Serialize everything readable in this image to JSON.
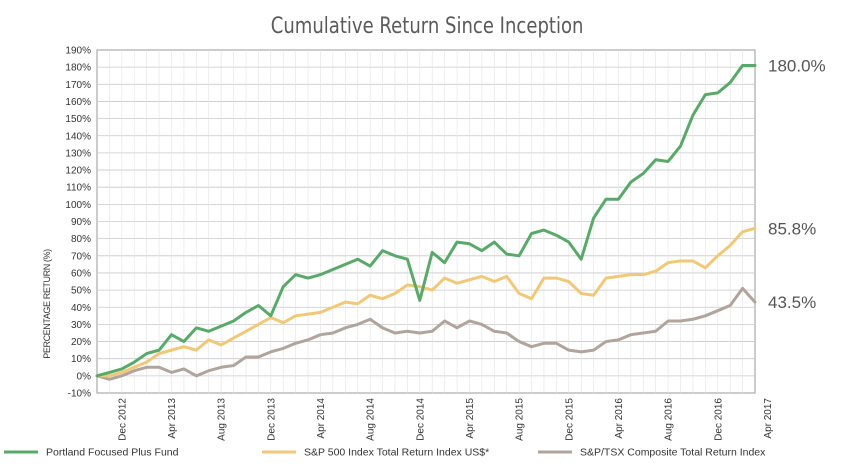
{
  "chart_data": {
    "type": "line",
    "title": "Cumulative Return Since Inception",
    "ylabel": "PERCENTAGE RETURN (%)",
    "xlabel": "",
    "ylim": [
      -10,
      190
    ],
    "y_ticks": [
      "-10%",
      "0%",
      "10%",
      "20%",
      "30%",
      "40%",
      "50%",
      "60%",
      "70%",
      "80%",
      "90%",
      "100%",
      "110%",
      "120%",
      "130%",
      "140%",
      "150%",
      "160%",
      "170%",
      "180%",
      "190%"
    ],
    "x_start": "Oct 2012",
    "x_end": "Apr 2017",
    "x_tick_labels": [
      "Dec 2012",
      "Apr 2013",
      "Aug 2013",
      "Dec 2013",
      "Apr 2014",
      "Aug 2014",
      "Dec 2014",
      "Apr 2015",
      "Aug 2015",
      "Dec 2015",
      "Apr 2016",
      "Aug 2016",
      "Dec 2016",
      "Apr 2017"
    ],
    "grid": true,
    "legend_position": "bottom",
    "series": [
      {
        "name": "Portland Focused Plus Fund",
        "color": "#5aa86a",
        "end_label": "180.0%",
        "values": [
          0,
          2,
          4,
          8,
          13,
          15,
          24,
          20,
          28,
          26,
          29,
          32,
          37,
          41,
          35,
          52,
          59,
          57,
          59,
          62,
          65,
          68,
          64,
          73,
          70,
          68,
          44,
          72,
          66,
          78,
          77,
          73,
          78,
          71,
          70,
          83,
          85,
          82,
          78,
          68,
          92,
          103,
          103,
          113,
          118,
          126,
          125,
          134,
          152,
          164,
          165,
          171,
          181,
          181
        ]
      },
      {
        "name": "S&P 500 Index Total Return Index US$*",
        "color": "#f0c878",
        "end_label": "85.8%",
        "values": [
          0,
          0,
          2,
          5,
          8,
          13,
          15,
          17,
          15,
          21,
          18,
          22,
          26,
          30,
          34,
          31,
          35,
          36,
          37,
          40,
          43,
          42,
          47,
          45,
          48,
          53,
          52,
          50,
          57,
          54,
          56,
          58,
          55,
          58,
          48,
          45,
          57,
          57,
          55,
          48,
          47,
          57,
          58,
          59,
          59,
          61,
          66,
          67,
          67,
          63,
          70,
          76,
          84,
          86
        ]
      },
      {
        "name": "S&P/TSX Composite Total Return Index",
        "color": "#b0a49c",
        "end_label": "43.5%",
        "values": [
          0,
          -2,
          0,
          3,
          5,
          5,
          2,
          4,
          0,
          3,
          5,
          6,
          11,
          11,
          14,
          16,
          19,
          21,
          24,
          25,
          28,
          30,
          33,
          28,
          25,
          26,
          25,
          26,
          32,
          28,
          32,
          30,
          26,
          25,
          20,
          17,
          19,
          19,
          15,
          14,
          15,
          20,
          21,
          24,
          25,
          26,
          32,
          32,
          33,
          35,
          38,
          41,
          51,
          43
        ]
      }
    ]
  }
}
